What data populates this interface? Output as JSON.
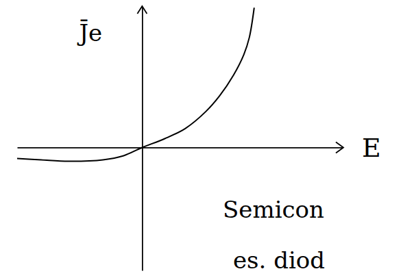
{
  "chart_data": {
    "type": "line",
    "x_label": "E",
    "y_label": "J̄e",
    "x": [
      -9.1,
      -7.35,
      -5.35,
      -2.85,
      -1.35,
      0,
      1.65,
      3.15,
      4.65,
      5.65,
      6.65,
      7.4,
      7.8,
      8.15
    ],
    "values": [
      -0.8,
      -0.9,
      -1.0,
      -0.9,
      -0.6,
      0,
      0.65,
      1.4,
      2.65,
      3.8,
      5.3,
      6.8,
      8.05,
      10.2
    ],
    "color": "#000000",
    "xlim": [
      -9.1,
      14.6
    ],
    "ylim": [
      -9,
      10.3
    ],
    "xticks": [],
    "yticks": [],
    "tick_labels": false,
    "grid": false,
    "annotations": [
      "Semicon",
      "es. diod"
    ]
  }
}
